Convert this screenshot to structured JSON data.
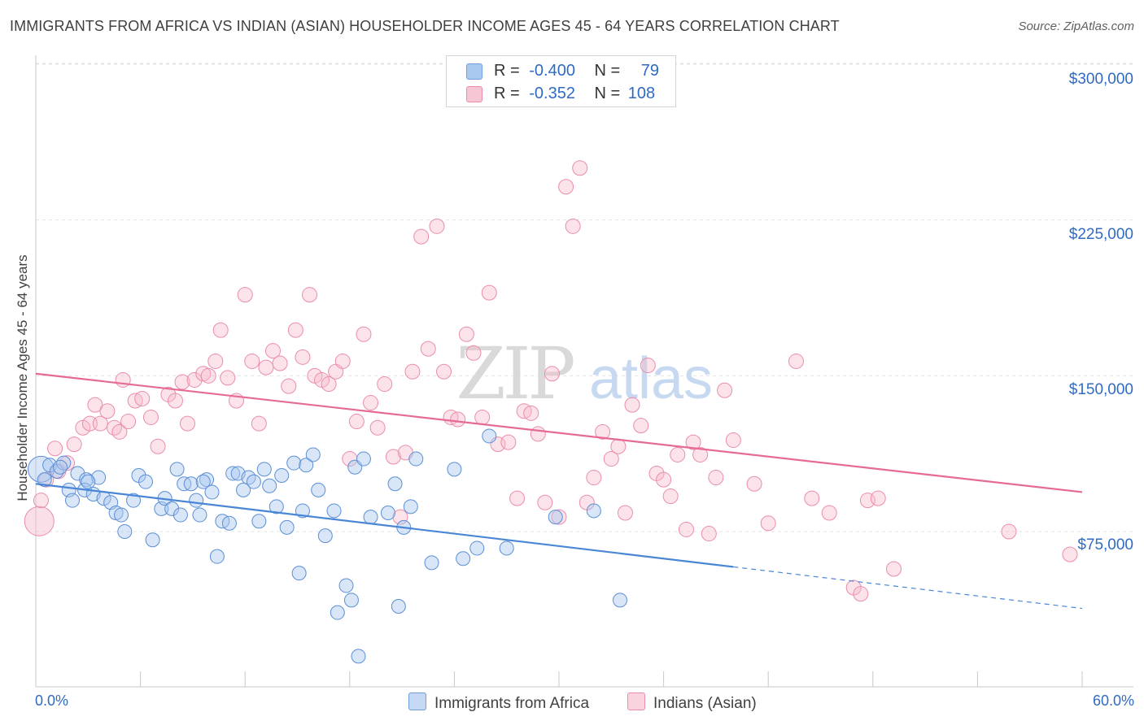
{
  "title": "IMMIGRANTS FROM AFRICA VS INDIAN (ASIAN) HOUSEHOLDER INCOME AGES 45 - 64 YEARS CORRELATION CHART",
  "source": "Source: ZipAtlas.com",
  "watermark": "ZIPatlas",
  "legend": {
    "r_label": "R =",
    "n_label": "N =",
    "series": [
      {
        "r": "-0.400",
        "n": "79",
        "color": "#a9c8f0"
      },
      {
        "r": "-0.352",
        "n": "108",
        "color": "#f7b8cb"
      }
    ]
  },
  "bottom_legend": [
    "Immigrants from Africa",
    "Indians (Asian)"
  ],
  "x_tick_labels": [
    "0.0%",
    "60.0%"
  ],
  "y_tick_labels": [
    "$300,000",
    "$225,000",
    "$150,000",
    "$75,000"
  ],
  "chart_data": {
    "type": "scatter",
    "title": "IMMIGRANTS FROM AFRICA VS INDIAN (ASIAN) HOUSEHOLDER INCOME AGES 45 - 64 YEARS CORRELATION CHART",
    "xlabel": "",
    "ylabel": "Householder Income Ages 45 - 64 years",
    "xlim": [
      0,
      60
    ],
    "ylim": [
      5000,
      320000
    ],
    "y_ticks": [
      75000,
      150000,
      225000,
      300000
    ],
    "grid": true,
    "legend_position": "top-center",
    "colors": {
      "africa": "#4a86d6",
      "africa_fill": "#a9c8f0",
      "indian": "#e56a96",
      "indian_fill": "#f7b8cb"
    },
    "series": [
      {
        "name": "Immigrants from Africa",
        "r": -0.4,
        "n": 79,
        "trend": {
          "x": [
            0,
            40
          ],
          "y": [
            98000,
            58000
          ],
          "dashed_to": [
            60,
            38000
          ]
        },
        "points": [
          [
            0.3,
            105000
          ],
          [
            0.5,
            100000
          ],
          [
            0.8,
            107000
          ],
          [
            1.2,
            104000
          ],
          [
            1.6,
            108000
          ],
          [
            1.4,
            106000
          ],
          [
            1.9,
            95000
          ],
          [
            2.1,
            90000
          ],
          [
            2.4,
            103000
          ],
          [
            2.9,
            100000
          ],
          [
            2.8,
            95000
          ],
          [
            3.3,
            93000
          ],
          [
            3.6,
            101000
          ],
          [
            3.9,
            91000
          ],
          [
            4.3,
            89000
          ],
          [
            4.6,
            84000
          ],
          [
            4.9,
            83000
          ],
          [
            5.1,
            75000
          ],
          [
            5.6,
            90000
          ],
          [
            5.9,
            102000
          ],
          [
            6.3,
            99000
          ],
          [
            6.7,
            71000
          ],
          [
            7.2,
            86000
          ],
          [
            7.4,
            91000
          ],
          [
            7.8,
            86000
          ],
          [
            8.1,
            105000
          ],
          [
            8.3,
            83000
          ],
          [
            8.5,
            98000
          ],
          [
            8.9,
            98000
          ],
          [
            9.2,
            90000
          ],
          [
            9.4,
            83000
          ],
          [
            9.8,
            100000
          ],
          [
            10.1,
            94000
          ],
          [
            10.4,
            63000
          ],
          [
            10.7,
            80000
          ],
          [
            11.1,
            79000
          ],
          [
            11.3,
            103000
          ],
          [
            11.6,
            103000
          ],
          [
            11.9,
            95000
          ],
          [
            12.2,
            101000
          ],
          [
            12.5,
            99000
          ],
          [
            12.8,
            80000
          ],
          [
            13.1,
            105000
          ],
          [
            13.4,
            97000
          ],
          [
            13.8,
            87000
          ],
          [
            14.1,
            102000
          ],
          [
            14.4,
            77000
          ],
          [
            14.8,
            108000
          ],
          [
            15.1,
            55000
          ],
          [
            15.3,
            85000
          ],
          [
            15.5,
            107000
          ],
          [
            15.9,
            112000
          ],
          [
            16.2,
            95000
          ],
          [
            16.6,
            73000
          ],
          [
            17.1,
            85000
          ],
          [
            17.3,
            36000
          ],
          [
            17.8,
            49000
          ],
          [
            18.1,
            42000
          ],
          [
            18.3,
            106000
          ],
          [
            18.5,
            15000
          ],
          [
            18.8,
            110000
          ],
          [
            19.2,
            82000
          ],
          [
            20.2,
            84000
          ],
          [
            20.6,
            98000
          ],
          [
            20.8,
            39000
          ],
          [
            21.1,
            77000
          ],
          [
            21.5,
            87000
          ],
          [
            21.8,
            110000
          ],
          [
            22.7,
            60000
          ],
          [
            24.0,
            105000
          ],
          [
            24.5,
            62000
          ],
          [
            25.3,
            67000
          ],
          [
            26.0,
            121000
          ],
          [
            27.0,
            67000
          ],
          [
            29.8,
            82000
          ],
          [
            32.0,
            85000
          ],
          [
            33.5,
            42000
          ],
          [
            3.0,
            99000
          ],
          [
            9.6,
            99000
          ]
        ]
      },
      {
        "name": "Indians (Asian)",
        "r": -0.352,
        "n": 108,
        "trend": {
          "x": [
            0,
            60
          ],
          "y": [
            151000,
            94000
          ]
        },
        "points": [
          [
            0.2,
            80000
          ],
          [
            0.3,
            90000
          ],
          [
            0.6,
            100000
          ],
          [
            1.1,
            115000
          ],
          [
            1.3,
            104000
          ],
          [
            1.8,
            108000
          ],
          [
            2.2,
            117000
          ],
          [
            2.7,
            125000
          ],
          [
            3.1,
            127000
          ],
          [
            3.4,
            136000
          ],
          [
            3.7,
            127000
          ],
          [
            4.1,
            133000
          ],
          [
            4.5,
            125000
          ],
          [
            4.8,
            123000
          ],
          [
            5.0,
            148000
          ],
          [
            5.3,
            128000
          ],
          [
            5.7,
            138000
          ],
          [
            6.1,
            139000
          ],
          [
            6.6,
            130000
          ],
          [
            7.0,
            116000
          ],
          [
            7.6,
            141000
          ],
          [
            8.0,
            138000
          ],
          [
            8.4,
            147000
          ],
          [
            8.7,
            127000
          ],
          [
            9.1,
            148000
          ],
          [
            9.6,
            151000
          ],
          [
            9.9,
            150000
          ],
          [
            10.3,
            157000
          ],
          [
            10.6,
            172000
          ],
          [
            11.0,
            149000
          ],
          [
            11.5,
            138000
          ],
          [
            12.0,
            189000
          ],
          [
            12.4,
            157000
          ],
          [
            12.8,
            127000
          ],
          [
            13.2,
            154000
          ],
          [
            13.6,
            162000
          ],
          [
            14.0,
            156000
          ],
          [
            14.5,
            145000
          ],
          [
            14.9,
            172000
          ],
          [
            15.3,
            159000
          ],
          [
            15.7,
            189000
          ],
          [
            16.0,
            150000
          ],
          [
            16.4,
            148000
          ],
          [
            16.8,
            146000
          ],
          [
            17.2,
            152000
          ],
          [
            17.6,
            157000
          ],
          [
            18.0,
            110000
          ],
          [
            18.4,
            128000
          ],
          [
            18.8,
            170000
          ],
          [
            19.2,
            137000
          ],
          [
            19.6,
            125000
          ],
          [
            20.0,
            146000
          ],
          [
            20.5,
            111000
          ],
          [
            20.9,
            82000
          ],
          [
            21.2,
            113000
          ],
          [
            21.6,
            152000
          ],
          [
            22.1,
            217000
          ],
          [
            22.5,
            163000
          ],
          [
            23.0,
            222000
          ],
          [
            23.4,
            152000
          ],
          [
            23.8,
            130000
          ],
          [
            24.2,
            129000
          ],
          [
            24.7,
            170000
          ],
          [
            25.1,
            161000
          ],
          [
            25.6,
            130000
          ],
          [
            26.0,
            190000
          ],
          [
            26.5,
            117000
          ],
          [
            27.1,
            118000
          ],
          [
            27.6,
            91000
          ],
          [
            28.0,
            133000
          ],
          [
            28.4,
            132000
          ],
          [
            28.8,
            122000
          ],
          [
            29.2,
            89000
          ],
          [
            29.6,
            151000
          ],
          [
            30.0,
            82000
          ],
          [
            30.4,
            241000
          ],
          [
            30.8,
            222000
          ],
          [
            31.2,
            250000
          ],
          [
            31.6,
            89000
          ],
          [
            32.0,
            101000
          ],
          [
            32.5,
            123000
          ],
          [
            33.0,
            110000
          ],
          [
            33.4,
            116000
          ],
          [
            33.8,
            84000
          ],
          [
            34.2,
            136000
          ],
          [
            34.7,
            126000
          ],
          [
            35.1,
            155000
          ],
          [
            35.6,
            103000
          ],
          [
            36.0,
            100000
          ],
          [
            36.4,
            92000
          ],
          [
            36.8,
            112000
          ],
          [
            37.3,
            76000
          ],
          [
            37.7,
            118000
          ],
          [
            38.1,
            112000
          ],
          [
            38.6,
            74000
          ],
          [
            39.0,
            101000
          ],
          [
            39.5,
            143000
          ],
          [
            40.0,
            119000
          ],
          [
            41.2,
            98000
          ],
          [
            42.0,
            79000
          ],
          [
            43.6,
            157000
          ],
          [
            44.5,
            91000
          ],
          [
            45.5,
            84000
          ],
          [
            46.9,
            48000
          ],
          [
            47.3,
            45000
          ],
          [
            47.7,
            90000
          ],
          [
            48.3,
            91000
          ],
          [
            49.2,
            57000
          ],
          [
            55.8,
            75000
          ],
          [
            59.3,
            64000
          ]
        ]
      }
    ]
  }
}
